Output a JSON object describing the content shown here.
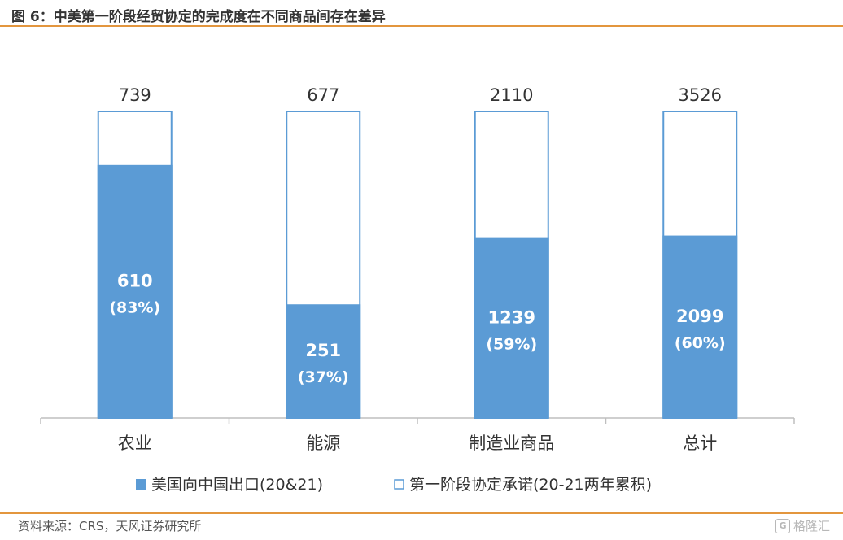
{
  "figure": {
    "title": "图 6：中美第一阶段经贸协定的完成度在不同商品间存在差异",
    "source": "资料来源：CRS，天风证券研究所",
    "watermark": "格隆汇",
    "watermark_icon": "G"
  },
  "chart_data": {
    "type": "bar",
    "stacking": "overlay",
    "categories": [
      "农业",
      "能源",
      "制造业商品",
      "总计"
    ],
    "series": [
      {
        "name": "美国向中国出口(20&21)",
        "values": [
          610,
          251,
          1239,
          2099
        ],
        "labels": [
          "610",
          "251",
          "1239",
          "2099"
        ],
        "percent_labels": [
          "(83%)",
          "(37%)",
          "(59%)",
          "(60%)"
        ],
        "color": "#5b9bd5",
        "style": "filled"
      },
      {
        "name": "第一阶段协定承诺(20-21两年累积)",
        "values": [
          739,
          677,
          2110,
          3526
        ],
        "labels": [
          "739",
          "677",
          "2110",
          "3526"
        ],
        "color": "#5b9bd5",
        "style": "outline"
      }
    ],
    "axis": "each bar normalized to its commitment total",
    "ylim_percent": [
      0,
      100
    ],
    "grid": false,
    "legend_position": "bottom"
  }
}
